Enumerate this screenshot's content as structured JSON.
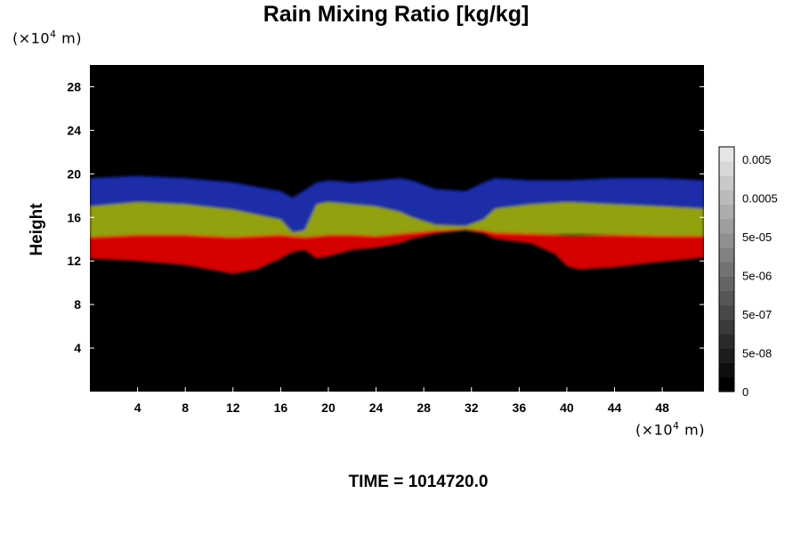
{
  "chart_data": {
    "type": "heatmap",
    "title": "Rain Mixing Ratio [kg/kg]",
    "ylabel": "Height",
    "xlabel": "",
    "x_unit": {
      "prefix": "(×10",
      "exp": "4",
      "suffix": " m)"
    },
    "y_unit": {
      "prefix": "(×10",
      "exp": "4",
      "suffix": " m)"
    },
    "xlim": [
      0,
      51.5
    ],
    "ylim": [
      0,
      30
    ],
    "xticks": [
      4,
      8,
      12,
      16,
      20,
      24,
      28,
      32,
      36,
      40,
      44,
      48
    ],
    "yticks": [
      4,
      8,
      12,
      16,
      20,
      24,
      28
    ],
    "colorbar": {
      "labels": [
        "0.005",
        "0.0005",
        "5e-05",
        "5e-06",
        "5e-07",
        "5e-08",
        "0"
      ],
      "levels": 17
    },
    "colors": {
      "background": "#000000",
      "low_band": "#e00000",
      "mid_band": "#9aaa10",
      "high_band": "#2030b0"
    },
    "bands": [
      {
        "name": "red",
        "x": [
          0,
          4,
          8,
          11,
          12,
          14,
          16,
          17,
          18,
          19,
          20,
          22,
          24,
          26,
          27,
          29,
          31.5,
          33,
          34,
          37,
          39,
          40,
          41,
          44,
          47,
          51.5
        ],
        "bottom": [
          12.2,
          12,
          11.6,
          11,
          10.8,
          11.2,
          12.2,
          12.8,
          13,
          12.2,
          12.4,
          13,
          13.2,
          13.6,
          14,
          14.5,
          14.8,
          14.5,
          14,
          13.6,
          12.6,
          11.5,
          11.2,
          11.4,
          11.8,
          12.3
        ],
        "top": [
          14.2,
          14.4,
          14.4,
          14.3,
          14.2,
          14.5,
          14.4,
          14.3,
          14.2,
          14.3,
          14.4,
          14.4,
          14.3,
          14.5,
          14.6,
          14.8,
          14.9,
          14.8,
          14.6,
          14.5,
          14.4,
          14.3,
          14.3,
          14.4,
          14.4,
          14.3
        ]
      },
      {
        "name": "green",
        "x": [
          0,
          4,
          8,
          12,
          16,
          17,
          18,
          19,
          20,
          22,
          24,
          26,
          27,
          29,
          31.5,
          33,
          34,
          37,
          40,
          44,
          48,
          51.5
        ],
        "bottom": [
          14.2,
          14.4,
          14.4,
          14.2,
          14.4,
          14.3,
          14.2,
          14.3,
          14.4,
          14.4,
          14.3,
          14.5,
          14.6,
          14.8,
          14.9,
          14.8,
          14.6,
          14.5,
          14.4,
          14.4,
          14.3,
          14.3
        ],
        "top": [
          17,
          17.4,
          17.2,
          16.7,
          15.8,
          14.6,
          14.8,
          17.2,
          17.4,
          17.2,
          17,
          16.5,
          16,
          15.3,
          15.2,
          15.8,
          16.8,
          17.2,
          17.4,
          17.2,
          17,
          16.8
        ]
      },
      {
        "name": "blue",
        "x": [
          0,
          4,
          8,
          12,
          16,
          17,
          18,
          19,
          20,
          22,
          24,
          26,
          27,
          29,
          31.5,
          33,
          34,
          37,
          40,
          44,
          48,
          51.5
        ],
        "bottom": [
          17,
          17.4,
          17.2,
          16.7,
          15.8,
          14.6,
          14.8,
          17.2,
          17.4,
          17.2,
          17,
          16.5,
          16,
          15.3,
          15.2,
          15.8,
          16.8,
          17.2,
          17.4,
          17.2,
          17,
          16.8
        ],
        "top": [
          19.6,
          19.8,
          19.6,
          19.2,
          18.4,
          17.8,
          18.5,
          19.2,
          19.4,
          19.2,
          19.4,
          19.6,
          19.4,
          18.6,
          18.4,
          19.2,
          19.6,
          19.4,
          19.4,
          19.6,
          19.6,
          19.4
        ]
      }
    ]
  },
  "time_label": "TIME = 1014720.0"
}
